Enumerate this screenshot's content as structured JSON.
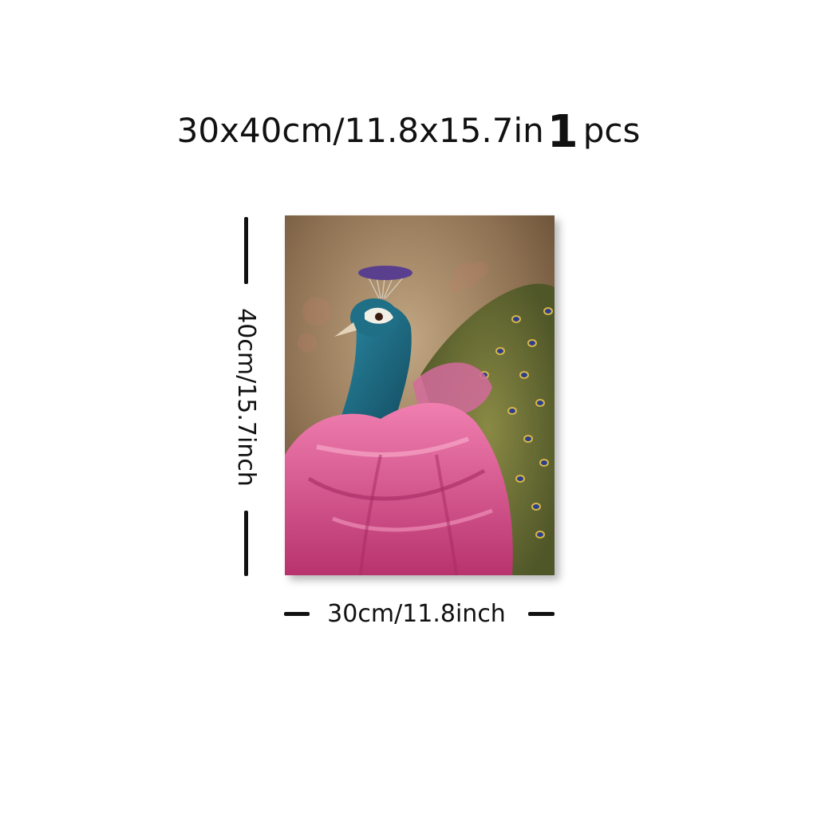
{
  "heading": {
    "size_text": "30x40cm/11.8x15.7in",
    "quantity": "1",
    "quantity_unit": "pcs"
  },
  "dimensions": {
    "height_label": "40cm/15.7inch",
    "width_label": "30cm/11.8inch"
  },
  "product_image": {
    "subject": "peacock-in-pink-drapery-painting",
    "colors": {
      "background": "#8e7152",
      "drapery": "#d9548c",
      "neck": "#1f6f86",
      "crest": "#5b3f8f",
      "tail": "#6f7a3a"
    }
  }
}
